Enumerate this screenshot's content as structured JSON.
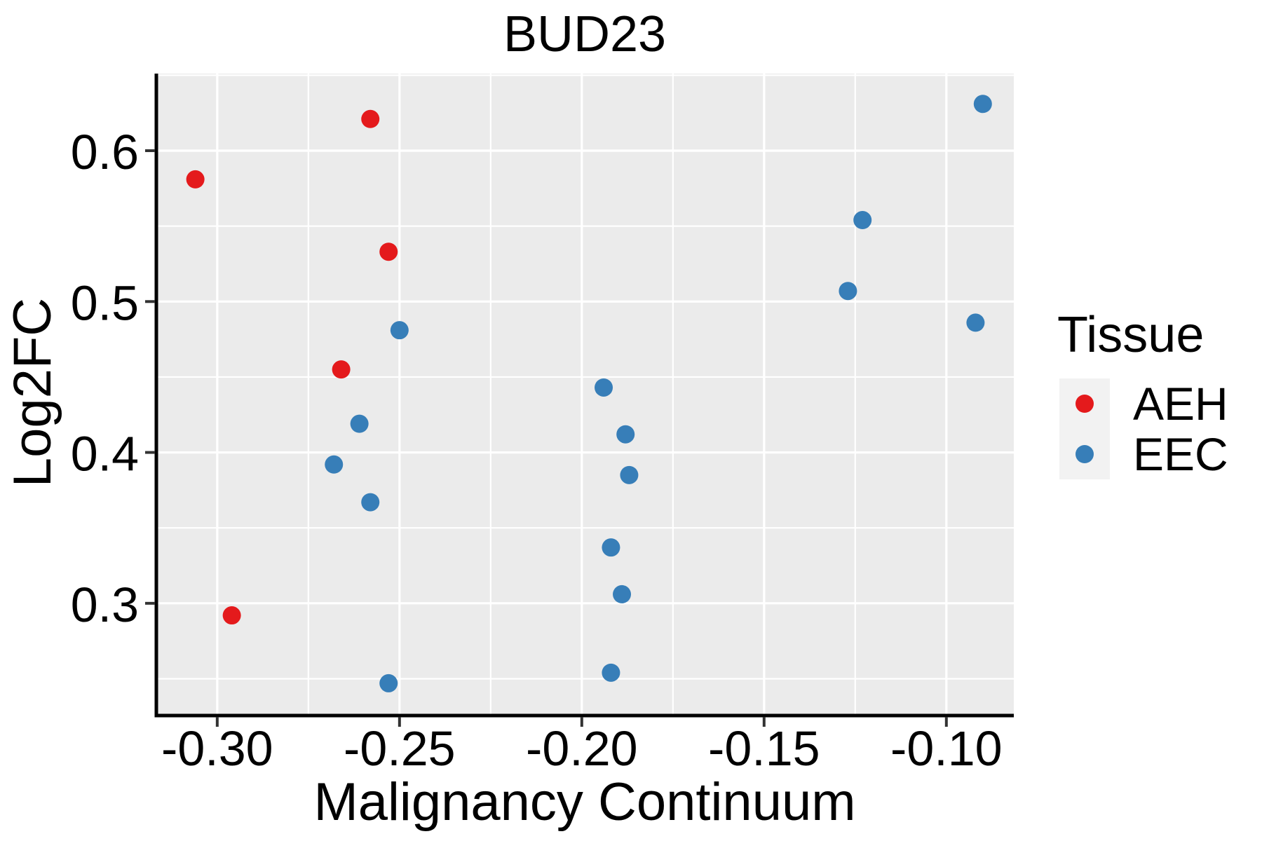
{
  "chart_data": {
    "type": "scatter",
    "title": "BUD23",
    "xlabel": "Malignancy Continuum",
    "ylabel": "Log2FC",
    "xlim": [
      -0.3167,
      -0.0815
    ],
    "ylim": [
      0.2256,
      0.6511
    ],
    "x_ticks": {
      "values": [
        -0.3,
        -0.25,
        -0.2,
        -0.15,
        -0.1
      ],
      "labels": [
        "-0.30",
        "-0.25",
        "-0.20",
        "-0.15",
        "-0.10"
      ]
    },
    "y_ticks": {
      "values": [
        0.3,
        0.4,
        0.5,
        0.6
      ],
      "labels": [
        "0.3",
        "0.4",
        "0.5",
        "0.6"
      ]
    },
    "x_minor": [
      -0.275,
      -0.225,
      -0.175,
      -0.125
    ],
    "y_minor": [
      0.25,
      0.35,
      0.45,
      0.55,
      0.65
    ],
    "grid": true,
    "legend_position": "right",
    "panel_color": "#EBEBEB",
    "grid_color": "#FFFFFF",
    "tick_color": "#333333",
    "spine_color": "#000000",
    "legend": {
      "title": "Tissue",
      "key_background": "#F2F2F2"
    },
    "series": [
      {
        "name": "AEH",
        "color": "#E41A1C",
        "points": [
          [
            -0.306,
            0.581
          ],
          [
            -0.258,
            0.621
          ],
          [
            -0.253,
            0.533
          ],
          [
            -0.266,
            0.455
          ],
          [
            -0.296,
            0.292
          ]
        ]
      },
      {
        "name": "EEC",
        "color": "#377EB8",
        "points": [
          [
            -0.25,
            0.481
          ],
          [
            -0.261,
            0.419
          ],
          [
            -0.268,
            0.392
          ],
          [
            -0.258,
            0.367
          ],
          [
            -0.253,
            0.247
          ],
          [
            -0.194,
            0.443
          ],
          [
            -0.188,
            0.412
          ],
          [
            -0.187,
            0.385
          ],
          [
            -0.192,
            0.337
          ],
          [
            -0.189,
            0.306
          ],
          [
            -0.192,
            0.254
          ],
          [
            -0.123,
            0.554
          ],
          [
            -0.127,
            0.507
          ],
          [
            -0.09,
            0.631
          ],
          [
            -0.092,
            0.486
          ]
        ]
      }
    ]
  }
}
